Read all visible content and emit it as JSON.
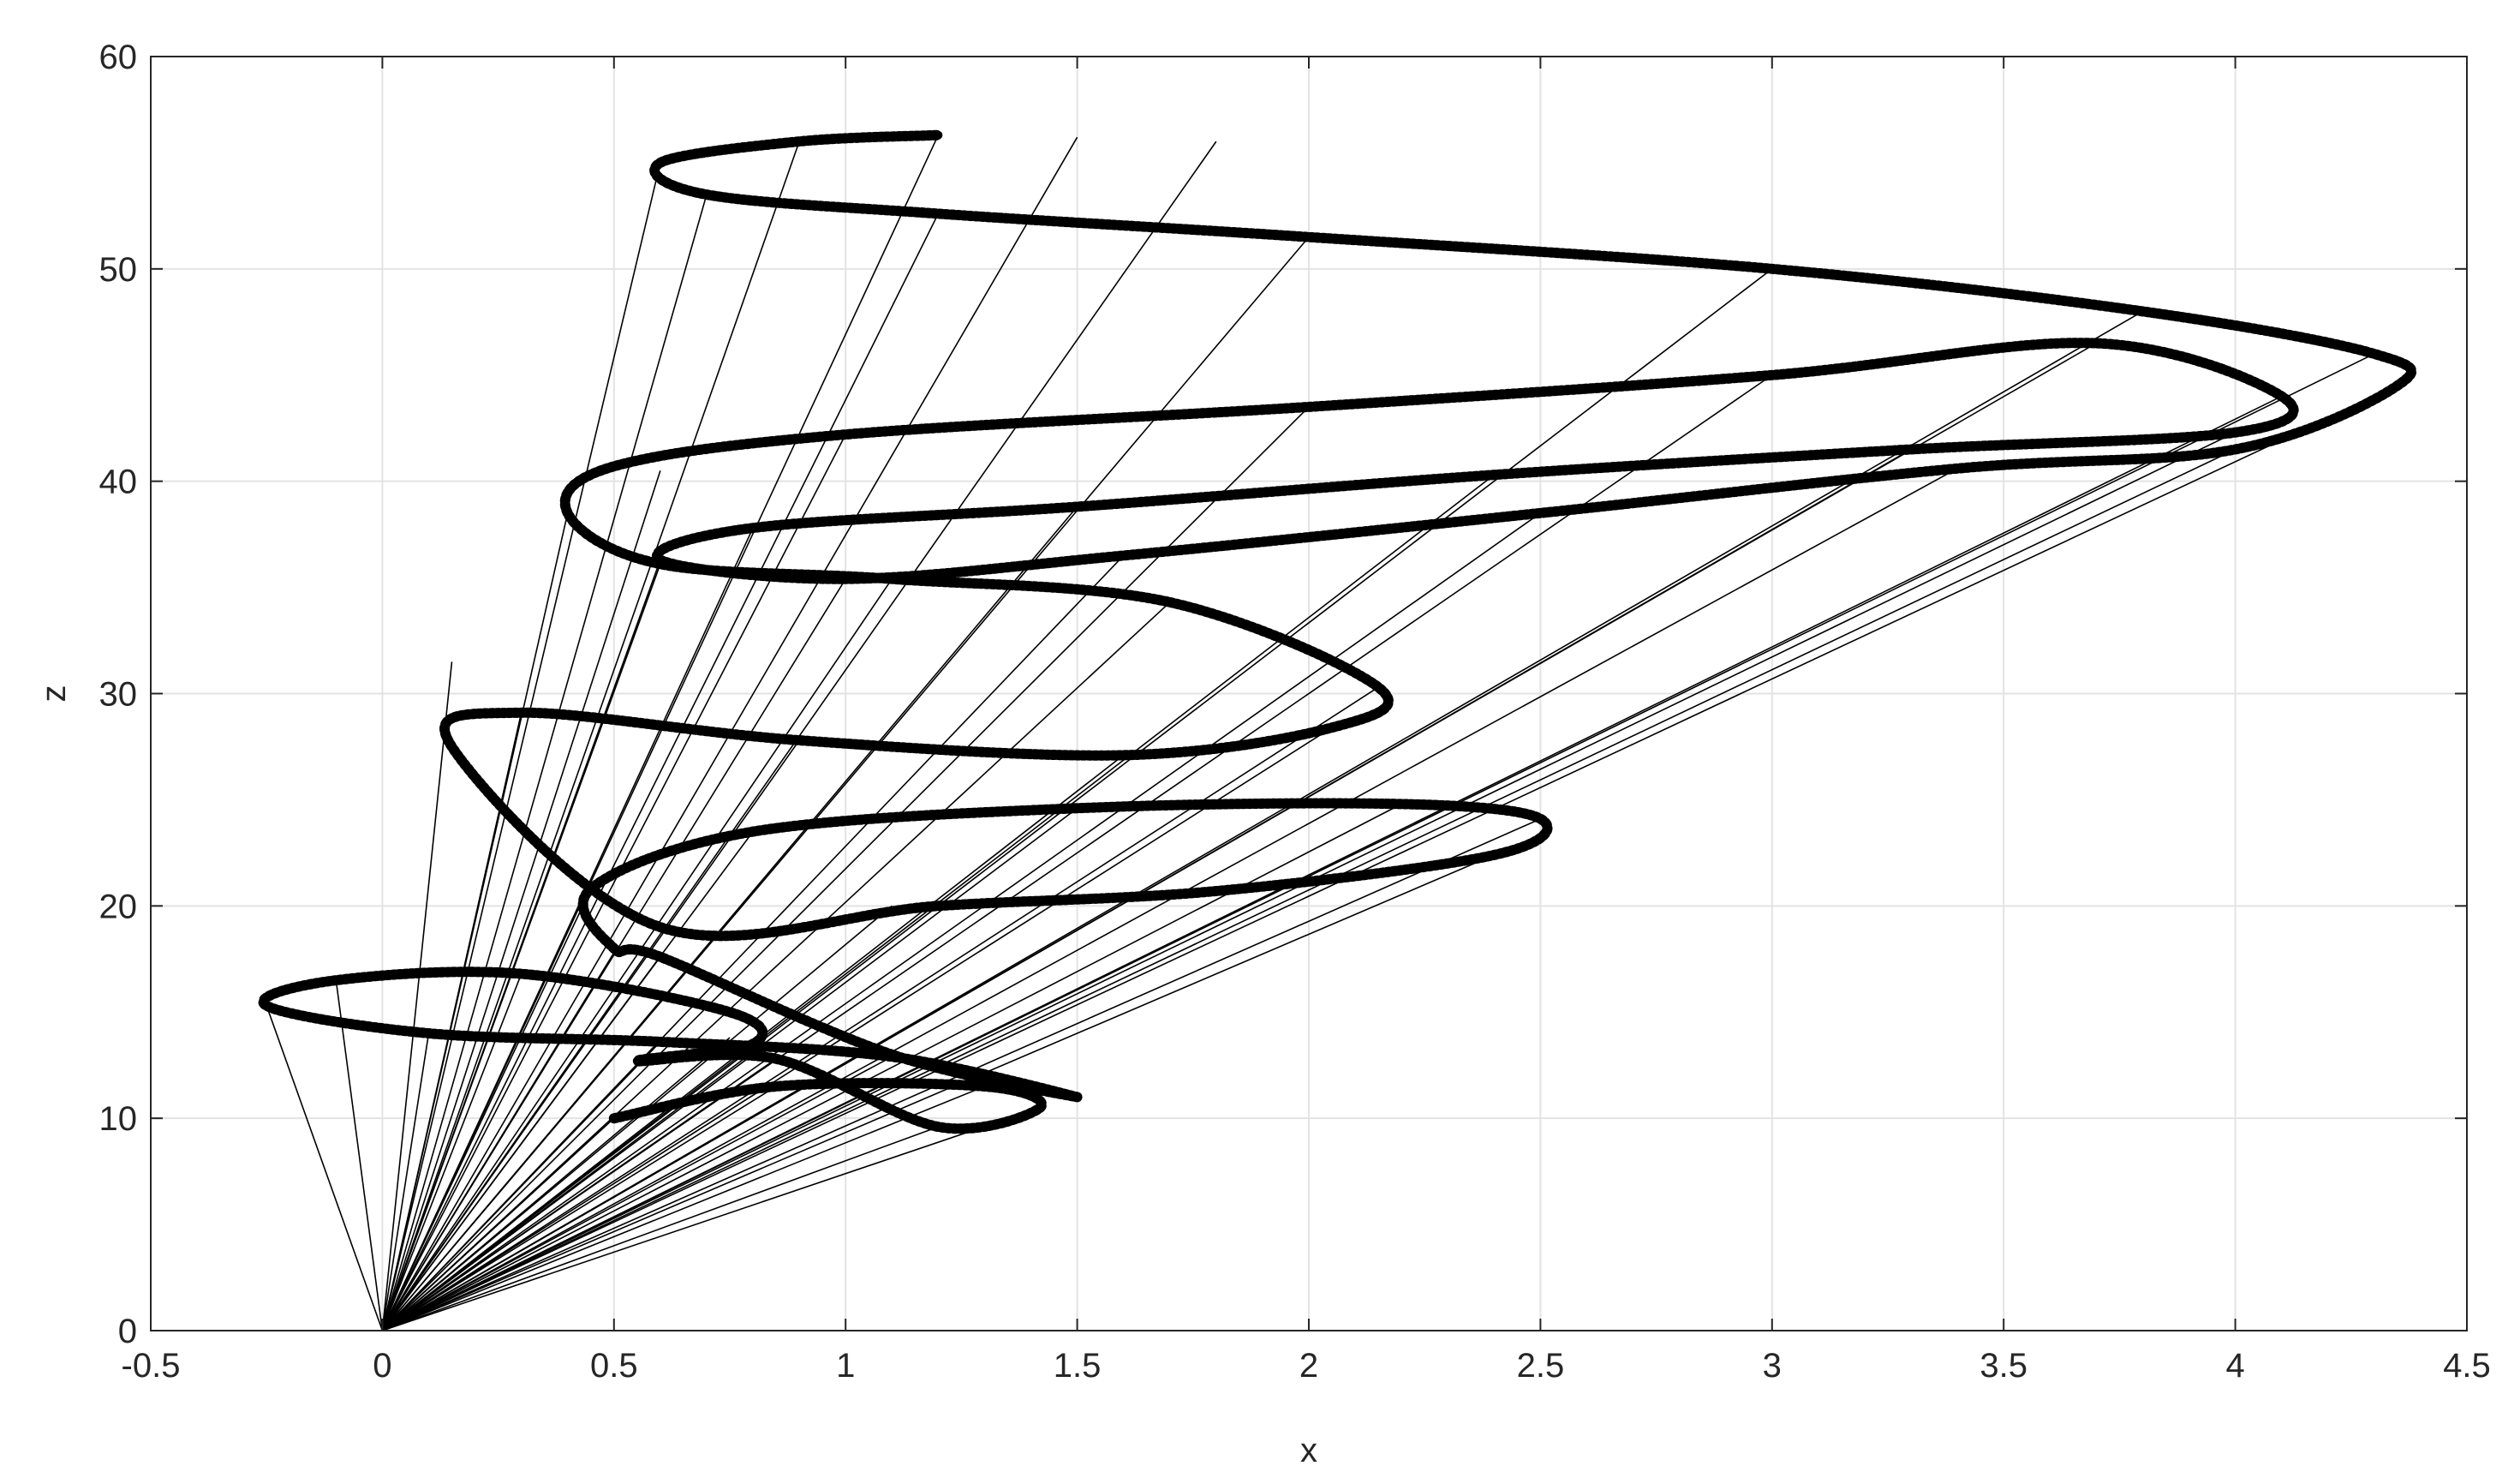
{
  "chart_data": {
    "type": "line",
    "title": "",
    "xlabel": "x",
    "ylabel": "z",
    "xlim": [
      -0.5,
      4.5
    ],
    "ylim": [
      0,
      60
    ],
    "xticks": [
      "-0.5",
      "0",
      "0.5",
      "1",
      "1.5",
      "2",
      "2.5",
      "3",
      "3.5",
      "4",
      "4.5"
    ],
    "yticks": [
      "0",
      "10",
      "20",
      "30",
      "40",
      "50",
      "60"
    ],
    "grid": true,
    "box": true,
    "colors": {
      "curve": "#000000",
      "rays": "#000000",
      "grid": "#e3e3e3",
      "axes": "#262626"
    },
    "origin": [
      0,
      0
    ],
    "series": [
      {
        "marker": "asterisk",
        "x": [
          0.5,
          0.85,
          1.3,
          1.42,
          1.2,
          0.85,
          0.55,
          0.8,
          0.75,
          0.3,
          -0.1,
          -0.25,
          0.1,
          0.6,
          1.1,
          1.5,
          1.1,
          0.6,
          0.5,
          0.45,
          0.8,
          1.5,
          2.2,
          2.5,
          2.4,
          1.8,
          1.2,
          0.6,
          0.15,
          0.3,
          0.9,
          1.6,
          2.05,
          2.15,
          1.7,
          1.1,
          0.6,
          0.4,
          0.5,
          1.0,
          2.0,
          3.0,
          3.7,
          4.1,
          4.0,
          3.3,
          2.4,
          1.5,
          0.8,
          0.6,
          1.0,
          1.6,
          2.5,
          3.4,
          4.0,
          4.35,
          4.3,
          3.8,
          3.0,
          2.0,
          1.2,
          0.7,
          0.6,
          0.9,
          1.2
        ],
        "y": [
          10.0,
          11.5,
          11.5,
          10.5,
          9.6,
          12.8,
          12.7,
          13.5,
          15.0,
          16.8,
          16.5,
          15.3,
          14.0,
          13.6,
          12.9,
          11.0,
          13.0,
          17.6,
          18.0,
          20.8,
          23.5,
          24.6,
          24.8,
          24.1,
          22.4,
          20.7,
          20.0,
          19.0,
          27.5,
          29.1,
          27.8,
          27.1,
          28.4,
          30.3,
          34.3,
          35.4,
          36.1,
          38.5,
          40.7,
          42.2,
          43.5,
          45.0,
          46.5,
          44.0,
          42.3,
          41.5,
          40.3,
          38.8,
          37.8,
          36.3,
          35.4,
          36.5,
          38.5,
          40.6,
          41.5,
          44.5,
          46.0,
          48.0,
          50.0,
          51.5,
          52.6,
          53.5,
          55.0,
          56.0,
          56.3
        ]
      }
    ],
    "rays": {
      "from": [
        0,
        0
      ],
      "to_x": [
        1.42,
        1.3,
        1.1,
        0.85,
        0.6,
        0.5,
        -0.25,
        -0.1,
        0.1,
        0.3,
        0.5,
        0.75,
        0.8,
        0.85,
        1.2,
        0.45,
        0.6,
        0.8,
        1.1,
        1.5,
        2.2,
        2.5,
        2.4,
        2.05,
        1.6,
        0.9,
        0.15,
        0.3,
        0.6,
        1.1,
        1.7,
        2.15,
        0.4,
        0.6,
        1.0,
        2.0,
        3.0,
        3.7,
        4.1,
        4.0,
        3.3,
        2.4,
        1.5,
        0.8,
        0.6,
        1.0,
        1.6,
        2.5,
        3.4,
        4.0,
        4.35,
        4.3,
        3.8,
        3.0,
        2.0,
        1.2,
        0.7,
        0.6,
        0.9,
        1.2,
        1.5,
        1.8
      ],
      "to_z": [
        10.5,
        11.5,
        12.9,
        11.5,
        13.6,
        10.0,
        15.3,
        16.5,
        14.0,
        16.8,
        17.8,
        13.8,
        13.0,
        12.8,
        9.6,
        20.8,
        17.6,
        23.5,
        20.0,
        24.6,
        24.8,
        24.1,
        22.4,
        28.4,
        27.1,
        27.8,
        31.5,
        29.1,
        36.1,
        35.4,
        34.3,
        30.3,
        38.5,
        40.5,
        42.2,
        43.5,
        45.0,
        46.5,
        44.0,
        42.3,
        41.5,
        40.3,
        38.8,
        37.8,
        36.3,
        35.4,
        36.5,
        38.5,
        40.6,
        41.5,
        44.5,
        46.0,
        48.0,
        50.0,
        51.5,
        52.6,
        53.5,
        55.0,
        56.0,
        56.3,
        56.2,
        56.0
      ]
    }
  }
}
